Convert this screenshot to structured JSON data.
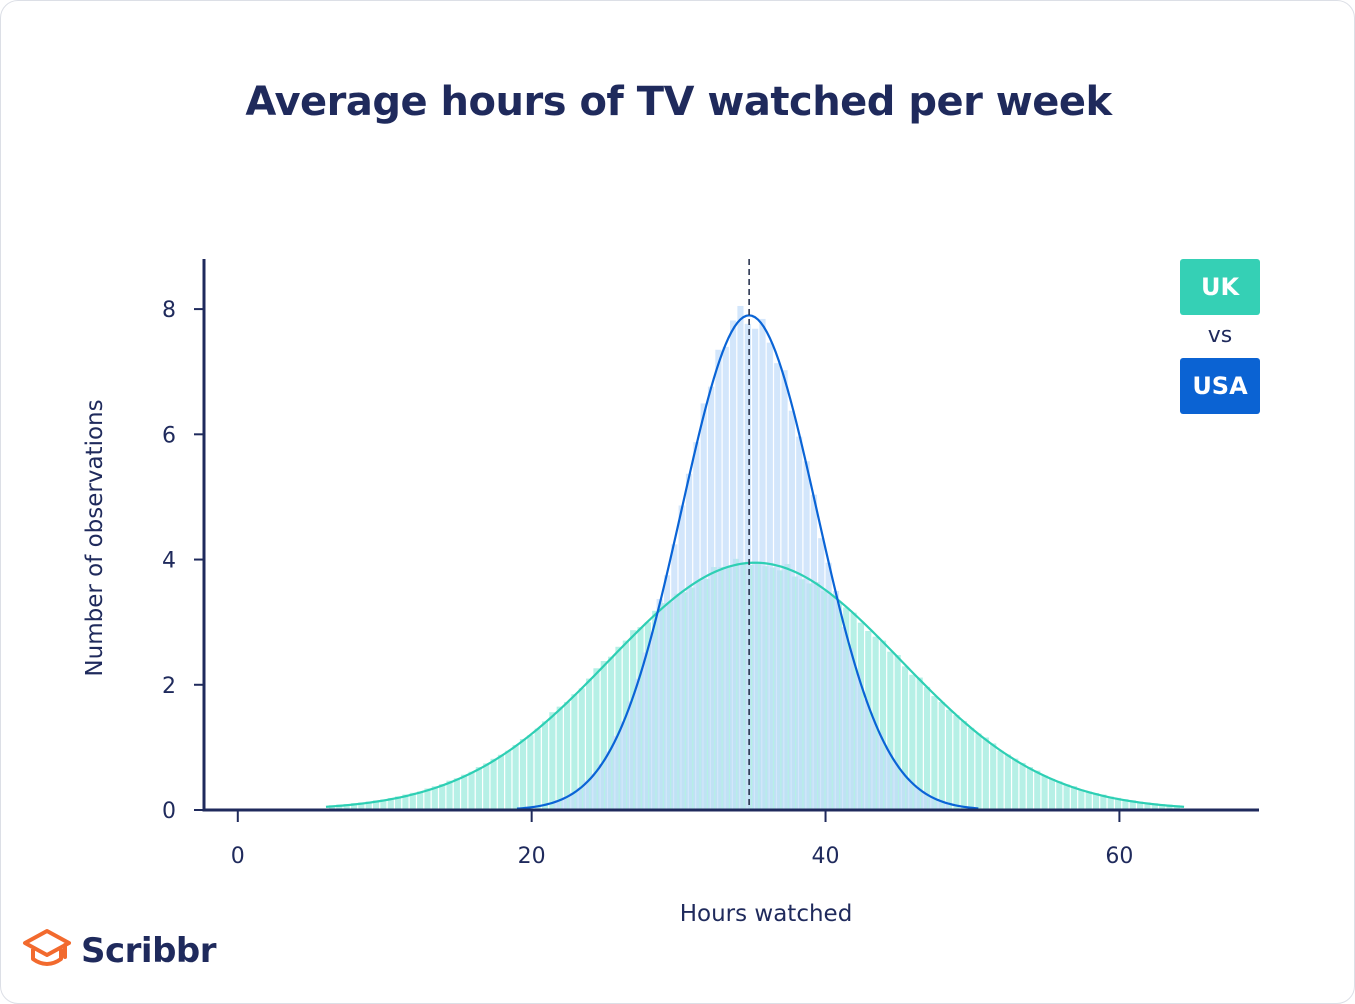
{
  "chart_data": {
    "type": "bar",
    "title": "Average hours of TV watched per week",
    "xlabel": "Hours watched",
    "ylabel": "Number of observations",
    "xlim": [
      -2.3,
      69.5
    ],
    "ylim": [
      0,
      8.8
    ],
    "xticks": [
      0,
      20,
      40,
      60
    ],
    "yticks": [
      0,
      2,
      4,
      6,
      8
    ],
    "mean_line_x": 34.8,
    "bin_width": 0.5,
    "series": [
      {
        "name": "UK",
        "color": "#2ecfb4",
        "bar_color": "#b6f0e6",
        "mean": 35.2,
        "sd": 9.9,
        "peak": 3.95,
        "range": [
          6.2,
          64.2
        ]
      },
      {
        "name": "USA",
        "color": "#0a64d6",
        "bar_color": "#c2dcf9",
        "mean": 34.8,
        "sd": 4.6,
        "peak": 7.9,
        "range": [
          21.5,
          48.5
        ]
      }
    ]
  },
  "legend": {
    "uk": "UK",
    "vs": "vs",
    "usa": "USA",
    "uk_color": "#35d0b5",
    "usa_color": "#0b63d3"
  },
  "brand": {
    "name": "Scribbr",
    "color": "#f26a2e",
    "text_color": "#1f2a5c"
  }
}
